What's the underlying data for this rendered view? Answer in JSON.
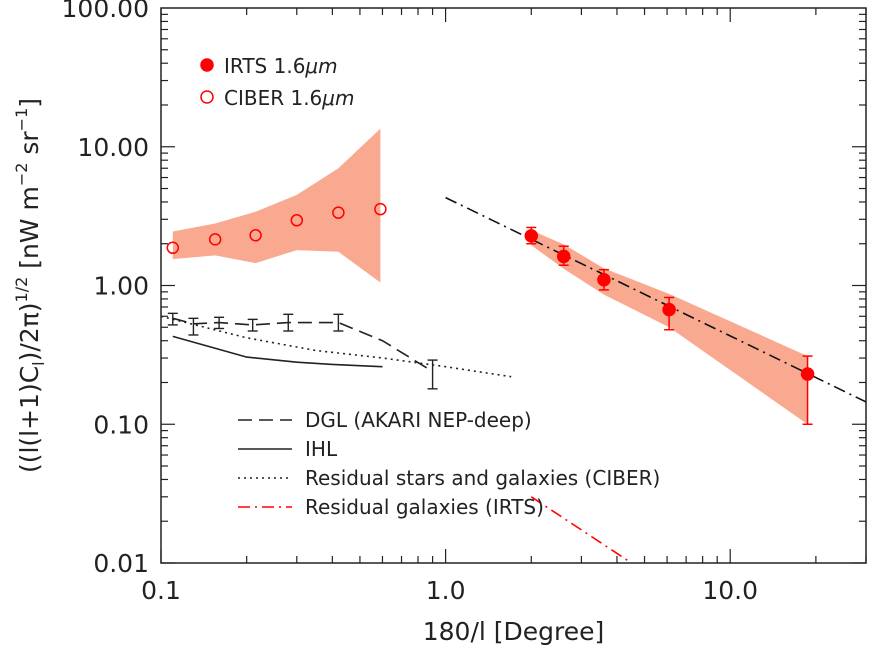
{
  "chart_data": {
    "type": "scatter",
    "title": "",
    "xlabel": "180/l [Degree]",
    "ylabel": "((l(l+1)C_l)/2π)^1/2 [nW m^-2 sr^-1]",
    "ylabel_parts": {
      "lead": "((l(l+1)C",
      "sub": "l",
      "mid": ")/2π)",
      "sup": "1/2",
      "tail": " [nW m",
      "exp1": "−2",
      "mid2": " sr",
      "exp2": "−1",
      "close": "]"
    },
    "xscale": "log",
    "yscale": "log",
    "xlim": [
      0.1,
      30
    ],
    "ylim": [
      0.01,
      100
    ],
    "x_ticks": [
      {
        "value": 0.1,
        "label": "0.1"
      },
      {
        "value": 1,
        "label": "1.0"
      },
      {
        "value": 10,
        "label": "10.0"
      }
    ],
    "y_ticks": [
      {
        "value": 0.01,
        "label": "0.01"
      },
      {
        "value": 0.1,
        "label": "0.10"
      },
      {
        "value": 1,
        "label": "1.00"
      },
      {
        "value": 10,
        "label": "10.00"
      },
      {
        "value": 100,
        "label": "100.00"
      }
    ],
    "legend_points": [
      {
        "name": "IRTS 1.6μm",
        "text": "IRTS 1.6",
        "unit": "μm",
        "filled": true,
        "color": "#ff0000"
      },
      {
        "name": "CIBER 1.6μm",
        "text": "CIBER 1.6",
        "unit": "μm",
        "filled": false,
        "color": "#ff0000"
      }
    ],
    "legend_lines": [
      {
        "name": "DGL (AKARI NEP-deep)",
        "style": "dash",
        "color": "#222222"
      },
      {
        "name": "IHL",
        "style": "solid",
        "color": "#222222"
      },
      {
        "name": "Residual stars and galaxies (CIBER)",
        "style": "dot",
        "color": "#222222"
      },
      {
        "name": "Residual galaxies (IRTS)",
        "style": "dashdot",
        "color": "#ff0000"
      }
    ],
    "series": [
      {
        "name": "CIBER 1.6μm",
        "kind": "points",
        "filled": false,
        "color": "#ff0000",
        "x": [
          0.11,
          0.155,
          0.215,
          0.3,
          0.42,
          0.59
        ],
        "y": [
          1.87,
          2.15,
          2.3,
          2.95,
          3.35,
          3.55
        ]
      },
      {
        "name": "CIBER band",
        "kind": "band",
        "color": "#f9a98f",
        "x": [
          0.11,
          0.155,
          0.215,
          0.3,
          0.42,
          0.59
        ],
        "lower": [
          1.55,
          1.65,
          1.45,
          1.8,
          1.75,
          1.05
        ],
        "upper": [
          2.45,
          2.8,
          3.4,
          4.5,
          7.0,
          13.5
        ]
      },
      {
        "name": "IRTS 1.6μm",
        "kind": "points",
        "filled": true,
        "color": "#ff0000",
        "x": [
          2.0,
          2.6,
          3.6,
          6.1,
          18.7
        ],
        "y": [
          2.28,
          1.62,
          1.1,
          0.67,
          0.23
        ],
        "err_lo": [
          2.0,
          1.4,
          0.93,
          0.48,
          0.1
        ],
        "err_hi": [
          2.62,
          1.92,
          1.3,
          0.82,
          0.31
        ]
      },
      {
        "name": "IRTS band",
        "kind": "band",
        "color": "#f9a98f",
        "x": [
          2.0,
          2.6,
          3.6,
          6.1,
          18.7
        ],
        "lower": [
          1.95,
          1.32,
          0.86,
          0.5,
          0.1
        ],
        "upper": [
          2.5,
          1.98,
          1.33,
          0.87,
          0.31
        ]
      },
      {
        "name": "DGL (AKARI NEP-deep)",
        "kind": "line",
        "style": "dash",
        "color": "#222222",
        "x": [
          0.11,
          0.13,
          0.16,
          0.21,
          0.28,
          0.42,
          0.6,
          0.9
        ],
        "y": [
          0.58,
          0.53,
          0.54,
          0.52,
          0.54,
          0.54,
          0.4,
          0.24
        ],
        "err_lo": [
          0.52,
          0.44,
          0.49,
          0.47,
          0.47,
          0.47,
          null,
          0.18
        ],
        "err_hi": [
          0.63,
          0.58,
          0.59,
          0.57,
          0.62,
          0.62,
          null,
          0.29
        ]
      },
      {
        "name": "IHL",
        "kind": "line",
        "style": "solid",
        "color": "#222222",
        "x": [
          0.11,
          0.15,
          0.2,
          0.3,
          0.4,
          0.6
        ],
        "y": [
          0.43,
          0.36,
          0.305,
          0.28,
          0.27,
          0.26
        ]
      },
      {
        "name": "Residual stars and galaxies (CIBER)",
        "kind": "line",
        "style": "dot",
        "color": "#222222",
        "x": [
          0.1,
          0.2,
          0.35,
          0.6,
          1.0,
          1.7
        ],
        "y": [
          0.6,
          0.42,
          0.34,
          0.3,
          0.26,
          0.22
        ]
      },
      {
        "name": "IRTS fit",
        "kind": "line",
        "style": "dashdot",
        "color": "#111111",
        "x": [
          1.0,
          30.0
        ],
        "y": [
          4.3,
          0.145
        ]
      },
      {
        "name": "Residual galaxies (IRTS)",
        "kind": "line",
        "style": "dashdot",
        "color": "#ff0000",
        "x": [
          2.0,
          4.5
        ],
        "y": [
          0.03,
          0.01
        ]
      }
    ]
  }
}
